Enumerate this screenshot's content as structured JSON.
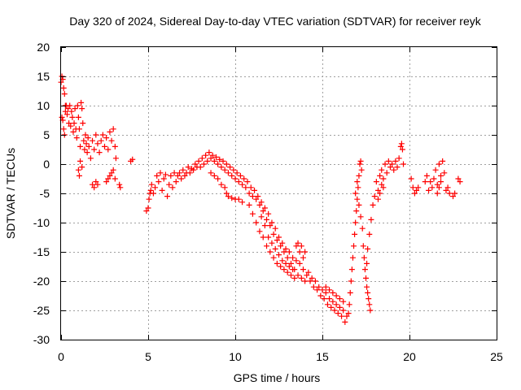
{
  "chart_data": {
    "type": "scatter",
    "title": "Day 320 of 2024, Sidereal Day-to-day VTEC variation (SDTVAR) for receiver reyk",
    "xlabel": "GPS time / hours",
    "ylabel": "SDTVAR / TECUs",
    "xlim": [
      0,
      25
    ],
    "ylim": [
      -30,
      20
    ],
    "xticks": [
      0,
      5,
      10,
      15,
      20,
      25
    ],
    "yticks": [
      20,
      15,
      10,
      5,
      0,
      -5,
      -10,
      -15,
      -20,
      -25,
      -30
    ],
    "grid": true,
    "marker": "+",
    "color": "#ff0000",
    "series": [
      {
        "name": "SDTVAR",
        "points": [
          [
            0.0,
            14.0
          ],
          [
            0.05,
            15.0
          ],
          [
            0.1,
            14.5
          ],
          [
            0.15,
            13.0
          ],
          [
            0.2,
            12.0
          ],
          [
            0.25,
            10.0
          ],
          [
            0.05,
            8.0
          ],
          [
            0.1,
            7.5
          ],
          [
            0.15,
            6.0
          ],
          [
            0.2,
            5.0
          ],
          [
            0.25,
            9.0
          ],
          [
            0.3,
            10.0
          ],
          [
            0.35,
            8.5
          ],
          [
            0.4,
            9.5
          ],
          [
            0.45,
            7.0
          ],
          [
            0.5,
            10.0
          ],
          [
            0.55,
            6.5
          ],
          [
            0.6,
            9.0
          ],
          [
            0.65,
            8.0
          ],
          [
            0.7,
            5.5
          ],
          [
            0.75,
            7.0
          ],
          [
            0.8,
            9.5
          ],
          [
            0.85,
            6.0
          ],
          [
            0.9,
            4.5
          ],
          [
            0.95,
            10.0
          ],
          [
            1.0,
            8.0
          ],
          [
            1.05,
            6.0
          ],
          [
            1.1,
            3.0
          ],
          [
            1.15,
            10.5
          ],
          [
            1.2,
            9.5
          ],
          [
            1.25,
            7.0
          ],
          [
            1.3,
            4.0
          ],
          [
            1.35,
            2.5
          ],
          [
            1.4,
            5.0
          ],
          [
            1.45,
            3.5
          ],
          [
            1.5,
            2.0
          ],
          [
            1.55,
            4.5
          ],
          [
            1.6,
            3.0
          ],
          [
            1.7,
            1.0
          ],
          [
            1.8,
            4.0
          ],
          [
            1.9,
            2.5
          ],
          [
            2.0,
            5.0
          ],
          [
            2.1,
            3.5
          ],
          [
            2.2,
            2.0
          ],
          [
            2.3,
            4.0
          ],
          [
            2.4,
            5.0
          ],
          [
            2.5,
            3.0
          ],
          [
            2.6,
            4.5
          ],
          [
            2.7,
            2.5
          ],
          [
            2.8,
            5.5
          ],
          [
            2.9,
            4.0
          ],
          [
            3.0,
            6.0
          ],
          [
            3.1,
            3.0
          ],
          [
            3.15,
            1.0
          ],
          [
            1.0,
            -1.0
          ],
          [
            1.05,
            -2.0
          ],
          [
            1.1,
            0.5
          ],
          [
            1.2,
            -0.5
          ],
          [
            1.8,
            -3.5
          ],
          [
            1.9,
            -4.0
          ],
          [
            2.0,
            -3.0
          ],
          [
            2.1,
            -3.5
          ],
          [
            2.6,
            -3.0
          ],
          [
            2.7,
            -2.5
          ],
          [
            2.8,
            -2.0
          ],
          [
            2.9,
            -1.5
          ],
          [
            3.0,
            -1.0
          ],
          [
            3.1,
            -2.5
          ],
          [
            3.35,
            -3.5
          ],
          [
            3.4,
            -4.0
          ],
          [
            4.0,
            0.5
          ],
          [
            4.1,
            0.8
          ],
          [
            4.9,
            -8.0
          ],
          [
            5.0,
            -7.5
          ],
          [
            5.05,
            -6.0
          ],
          [
            5.1,
            -5.0
          ],
          [
            5.15,
            -4.5
          ],
          [
            5.2,
            -3.5
          ],
          [
            5.3,
            -5.0
          ],
          [
            5.4,
            -4.0
          ],
          [
            5.5,
            -2.0
          ],
          [
            5.6,
            -3.0
          ],
          [
            5.7,
            -1.5
          ],
          [
            5.8,
            -4.5
          ],
          [
            5.9,
            -2.5
          ],
          [
            6.0,
            -1.8
          ],
          [
            6.1,
            -5.5
          ],
          [
            6.2,
            -3.5
          ],
          [
            6.3,
            -2.0
          ],
          [
            6.4,
            -4.0
          ],
          [
            6.5,
            -1.5
          ],
          [
            6.6,
            -3.0
          ],
          [
            6.7,
            -2.0
          ],
          [
            6.8,
            -1.5
          ],
          [
            6.9,
            -2.5
          ],
          [
            7.0,
            -1.0
          ],
          [
            7.1,
            -2.0
          ],
          [
            7.2,
            -1.5
          ],
          [
            7.3,
            -0.5
          ],
          [
            7.4,
            -1.5
          ],
          [
            7.5,
            -0.8
          ],
          [
            7.6,
            -1.0
          ],
          [
            7.7,
            0.0
          ],
          [
            7.8,
            -0.5
          ],
          [
            7.9,
            0.5
          ],
          [
            8.0,
            -0.5
          ],
          [
            8.1,
            1.0
          ],
          [
            8.2,
            0.0
          ],
          [
            8.3,
            1.5
          ],
          [
            8.4,
            0.5
          ],
          [
            8.5,
            2.0
          ],
          [
            8.6,
            1.0
          ],
          [
            8.7,
            1.5
          ],
          [
            8.8,
            0.5
          ],
          [
            8.9,
            1.2
          ],
          [
            9.0,
            0.0
          ],
          [
            9.1,
            0.8
          ],
          [
            9.2,
            -0.5
          ],
          [
            9.3,
            0.5
          ],
          [
            9.4,
            -1.0
          ],
          [
            9.5,
            0.0
          ],
          [
            9.6,
            -1.5
          ],
          [
            9.7,
            -0.5
          ],
          [
            9.8,
            -2.0
          ],
          [
            9.9,
            -1.0
          ],
          [
            10.0,
            -2.5
          ],
          [
            8.6,
            -1.5
          ],
          [
            8.8,
            -2.0
          ],
          [
            9.0,
            -2.5
          ],
          [
            9.2,
            -3.5
          ],
          [
            9.4,
            -4.0
          ],
          [
            9.5,
            -5.0
          ],
          [
            9.6,
            -5.5
          ],
          [
            9.8,
            -5.8
          ],
          [
            10.0,
            -6.0
          ],
          [
            10.2,
            -6.0
          ],
          [
            10.4,
            -6.5
          ],
          [
            10.1,
            -1.5
          ],
          [
            10.2,
            -3.0
          ],
          [
            10.3,
            -2.0
          ],
          [
            10.4,
            -3.5
          ],
          [
            10.5,
            -2.5
          ],
          [
            10.6,
            -4.0
          ],
          [
            10.7,
            -3.0
          ],
          [
            10.8,
            -5.0
          ],
          [
            10.9,
            -4.0
          ],
          [
            11.0,
            -5.5
          ],
          [
            11.1,
            -4.5
          ],
          [
            11.2,
            -6.0
          ],
          [
            11.3,
            -5.5
          ],
          [
            11.4,
            -7.0
          ],
          [
            11.5,
            -6.5
          ],
          [
            11.6,
            -8.0
          ],
          [
            11.7,
            -7.5
          ],
          [
            11.8,
            -9.5
          ],
          [
            11.9,
            -8.5
          ],
          [
            12.0,
            -10.5
          ],
          [
            12.1,
            -10.0
          ],
          [
            12.2,
            -12.0
          ],
          [
            12.3,
            -11.0
          ],
          [
            12.4,
            -13.0
          ],
          [
            12.5,
            -12.5
          ],
          [
            12.6,
            -14.0
          ],
          [
            12.7,
            -13.5
          ],
          [
            12.8,
            -15.0
          ],
          [
            12.9,
            -14.5
          ],
          [
            13.0,
            -16.0
          ],
          [
            13.1,
            -15.0
          ],
          [
            13.2,
            -17.0
          ],
          [
            13.3,
            -16.0
          ],
          [
            13.4,
            -18.0
          ],
          [
            13.5,
            -16.5
          ],
          [
            13.6,
            -19.0
          ],
          [
            13.7,
            -17.0
          ],
          [
            13.8,
            -19.5
          ],
          [
            13.9,
            -18.0
          ],
          [
            14.0,
            -20.0
          ],
          [
            10.8,
            -7.0
          ],
          [
            11.0,
            -8.5
          ],
          [
            11.2,
            -10.0
          ],
          [
            11.4,
            -11.5
          ],
          [
            11.6,
            -12.5
          ],
          [
            11.8,
            -14.0
          ],
          [
            12.0,
            -15.0
          ],
          [
            12.2,
            -16.0
          ],
          [
            12.4,
            -17.0
          ],
          [
            12.6,
            -17.5
          ],
          [
            12.8,
            -18.0
          ],
          [
            13.0,
            -18.5
          ],
          [
            13.2,
            -19.0
          ],
          [
            13.4,
            -19.5
          ],
          [
            11.5,
            -9.0
          ],
          [
            11.7,
            -10.5
          ],
          [
            11.9,
            -12.5
          ],
          [
            12.1,
            -13.5
          ],
          [
            12.3,
            -14.5
          ],
          [
            12.5,
            -15.5
          ],
          [
            12.7,
            -16.5
          ],
          [
            12.9,
            -17.0
          ],
          [
            13.1,
            -17.5
          ],
          [
            13.3,
            -18.0
          ],
          [
            13.5,
            -14.0
          ],
          [
            13.6,
            -13.5
          ],
          [
            13.7,
            -15.0
          ],
          [
            13.8,
            -14.0
          ],
          [
            13.9,
            -16.0
          ],
          [
            14.0,
            -15.0
          ],
          [
            14.1,
            -19.0
          ],
          [
            14.2,
            -18.5
          ],
          [
            14.3,
            -20.0
          ],
          [
            14.4,
            -19.5
          ],
          [
            14.5,
            -21.0
          ],
          [
            14.6,
            -20.0
          ],
          [
            14.7,
            -21.5
          ],
          [
            14.8,
            -21.0
          ],
          [
            14.9,
            -22.5
          ],
          [
            15.0,
            -21.5
          ],
          [
            15.1,
            -23.0
          ],
          [
            15.2,
            -22.0
          ],
          [
            15.3,
            -24.0
          ],
          [
            15.4,
            -23.0
          ],
          [
            15.5,
            -24.5
          ],
          [
            15.6,
            -23.5
          ],
          [
            15.7,
            -25.0
          ],
          [
            15.8,
            -24.0
          ],
          [
            15.9,
            -25.5
          ],
          [
            16.0,
            -24.5
          ],
          [
            16.1,
            -26.0
          ],
          [
            16.2,
            -25.0
          ],
          [
            16.3,
            -27.0
          ],
          [
            16.4,
            -26.0
          ],
          [
            15.2,
            -21.0
          ],
          [
            15.4,
            -21.5
          ],
          [
            15.6,
            -22.0
          ],
          [
            15.8,
            -22.5
          ],
          [
            16.0,
            -23.0
          ],
          [
            16.2,
            -23.5
          ],
          [
            16.5,
            -25.5
          ],
          [
            16.55,
            -24.0
          ],
          [
            16.6,
            -22.0
          ],
          [
            16.65,
            -20.0
          ],
          [
            16.7,
            -18.0
          ],
          [
            16.75,
            -16.0
          ],
          [
            16.8,
            -14.0
          ],
          [
            16.85,
            -12.0
          ],
          [
            16.9,
            -10.0
          ],
          [
            16.95,
            -8.0
          ],
          [
            17.0,
            -6.0
          ],
          [
            17.05,
            -4.0
          ],
          [
            17.1,
            -2.0
          ],
          [
            17.15,
            0.0
          ],
          [
            17.2,
            0.5
          ],
          [
            17.25,
            -1.0
          ],
          [
            16.9,
            -5.0
          ],
          [
            17.0,
            -3.0
          ],
          [
            17.1,
            -7.0
          ],
          [
            17.2,
            -9.0
          ],
          [
            17.3,
            -11.0
          ],
          [
            17.35,
            -14.0
          ],
          [
            17.4,
            -16.0
          ],
          [
            17.45,
            -18.0
          ],
          [
            17.5,
            -19.5
          ],
          [
            17.55,
            -21.0
          ],
          [
            17.6,
            -22.0
          ],
          [
            17.65,
            -23.0
          ],
          [
            17.7,
            -24.0
          ],
          [
            17.75,
            -25.0
          ],
          [
            17.55,
            -17.0
          ],
          [
            17.6,
            -14.5
          ],
          [
            17.7,
            -12.0
          ],
          [
            17.8,
            -9.5
          ],
          [
            17.9,
            -7.0
          ],
          [
            18.0,
            -5.5
          ],
          [
            18.1,
            -3.0
          ],
          [
            18.2,
            -4.5
          ],
          [
            18.3,
            -2.0
          ],
          [
            18.4,
            -1.0
          ],
          [
            18.5,
            -2.5
          ],
          [
            18.6,
            0.0
          ],
          [
            18.7,
            -1.5
          ],
          [
            18.8,
            0.5
          ],
          [
            18.9,
            -0.5
          ],
          [
            19.0,
            0.0
          ],
          [
            19.1,
            -1.0
          ],
          [
            19.2,
            0.5
          ],
          [
            19.3,
            -0.5
          ],
          [
            19.4,
            1.0
          ],
          [
            19.5,
            3.0
          ],
          [
            19.55,
            3.5
          ],
          [
            19.6,
            2.5
          ],
          [
            19.65,
            0.0
          ],
          [
            18.2,
            -6.0
          ],
          [
            18.3,
            -5.0
          ],
          [
            18.4,
            -3.5
          ],
          [
            18.5,
            -4.0
          ],
          [
            20.1,
            -2.5
          ],
          [
            20.2,
            -4.0
          ],
          [
            20.3,
            -5.0
          ],
          [
            20.4,
            -4.5
          ],
          [
            20.5,
            -4.0
          ],
          [
            20.9,
            -3.0
          ],
          [
            21.0,
            -2.0
          ],
          [
            21.1,
            -4.5
          ],
          [
            21.2,
            -3.0
          ],
          [
            21.3,
            -4.0
          ],
          [
            21.4,
            -2.5
          ],
          [
            21.5,
            -1.0
          ],
          [
            21.6,
            -3.5
          ],
          [
            21.7,
            0.0
          ],
          [
            21.8,
            -2.0
          ],
          [
            21.9,
            0.5
          ],
          [
            22.0,
            -1.5
          ],
          [
            21.6,
            -5.0
          ],
          [
            21.7,
            -4.0
          ],
          [
            21.8,
            -3.0
          ],
          [
            22.1,
            -4.5
          ],
          [
            22.2,
            -4.0
          ],
          [
            22.3,
            -5.0
          ],
          [
            22.5,
            -5.5
          ],
          [
            22.6,
            -5.0
          ],
          [
            22.8,
            -2.5
          ],
          [
            22.9,
            -3.0
          ]
        ]
      }
    ]
  }
}
